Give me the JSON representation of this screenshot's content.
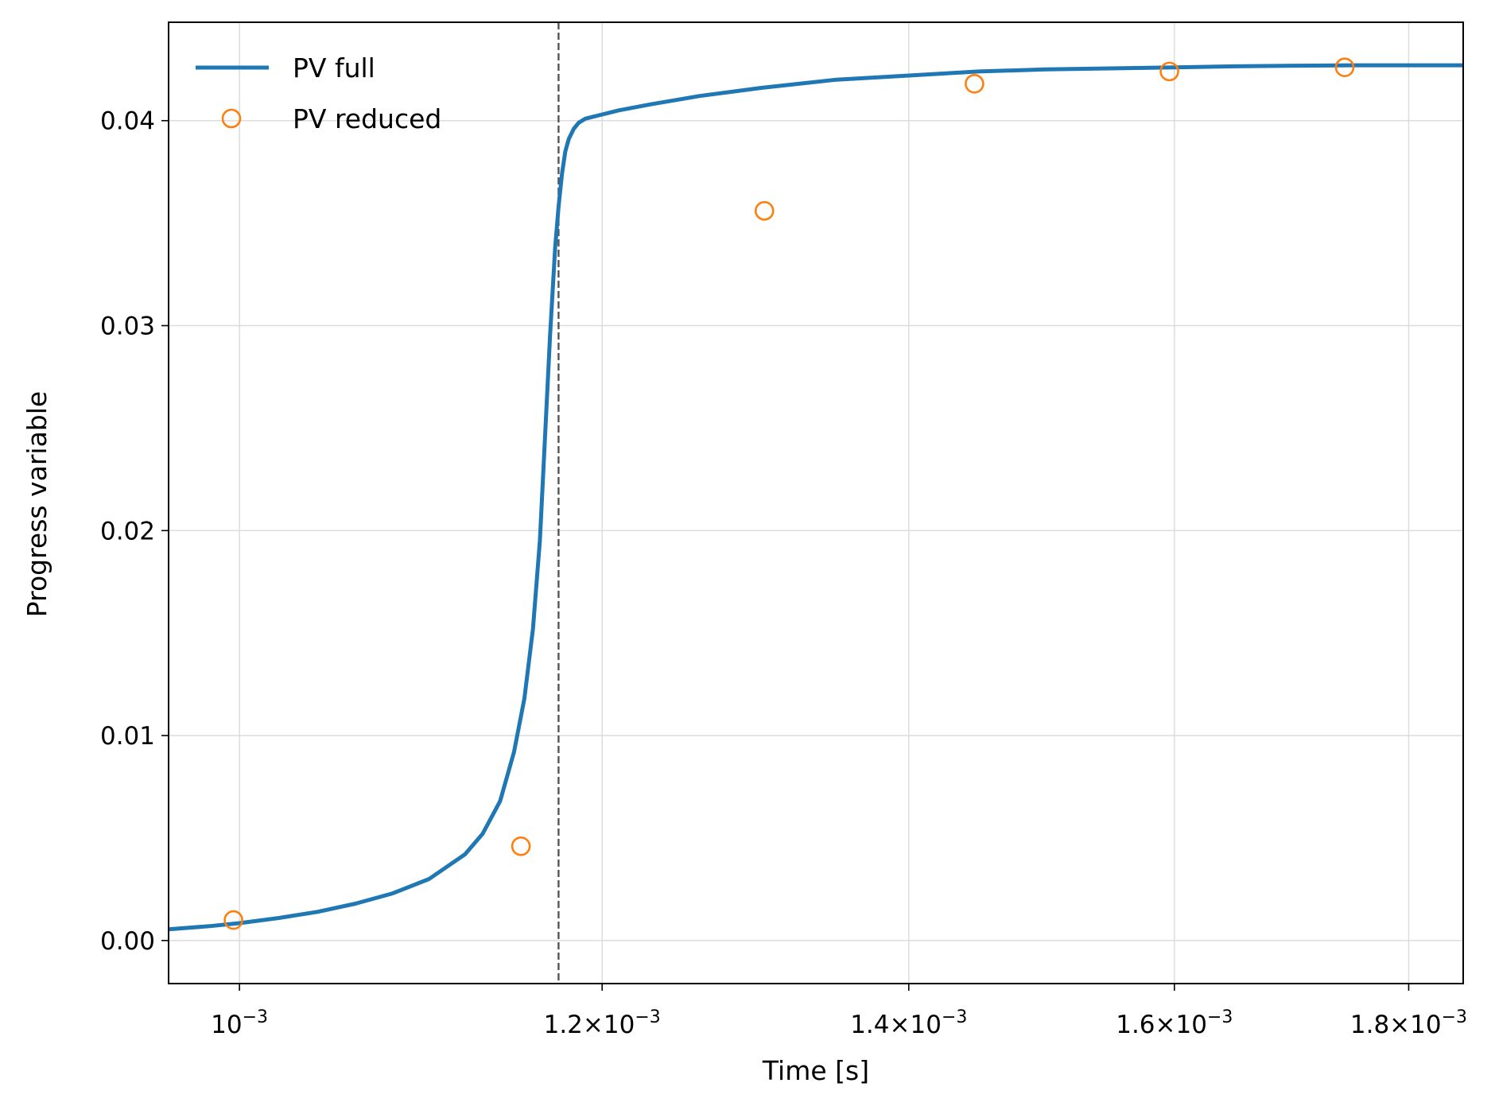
{
  "chart_data": {
    "type": "line",
    "xlabel": "Time [s]",
    "ylabel": "Progress variable",
    "x_scale": "log",
    "xlim": [
      0.000965,
      0.00185
    ],
    "ylim": [
      -0.0021,
      0.0448
    ],
    "grid": true,
    "legend_position": "top-left",
    "x_ticks": [
      {
        "value": 0.001,
        "mantissa": "",
        "exponent": "−3"
      },
      {
        "value": 0.0012,
        "mantissa": "1.2",
        "exponent": "−3"
      },
      {
        "value": 0.0014,
        "mantissa": "1.4",
        "exponent": "−3"
      },
      {
        "value": 0.0016,
        "mantissa": "1.6",
        "exponent": "−3"
      },
      {
        "value": 0.0018,
        "mantissa": "1.8",
        "exponent": "−3"
      }
    ],
    "y_ticks": [
      {
        "value": 0.0,
        "label": "0.00"
      },
      {
        "value": 0.01,
        "label": "0.01"
      },
      {
        "value": 0.02,
        "label": "0.02"
      },
      {
        "value": 0.03,
        "label": "0.03"
      },
      {
        "value": 0.04,
        "label": "0.04"
      }
    ],
    "vline": {
      "x": 0.001174,
      "color": "#555555",
      "style": "dashed"
    },
    "series": [
      {
        "name": "PV full",
        "kind": "line",
        "color": "#1f77b4",
        "x": [
          0.000965,
          0.000985,
          0.001,
          0.00102,
          0.00104,
          0.00106,
          0.00108,
          0.0011,
          0.00112,
          0.00113,
          0.00114,
          0.001148,
          0.001154,
          0.001159,
          0.001163,
          0.001166,
          0.001169,
          0.001172,
          0.001174,
          0.001176,
          0.001178,
          0.00118,
          0.001183,
          0.001186,
          0.00119,
          0.001195,
          0.0012,
          0.00121,
          0.00123,
          0.00126,
          0.0013,
          0.00135,
          0.0014,
          0.00145,
          0.0015,
          0.00155,
          0.0016,
          0.00165,
          0.0017,
          0.00175,
          0.0018,
          0.00185
        ],
        "y": [
          0.00055,
          0.0007,
          0.00085,
          0.0011,
          0.0014,
          0.0018,
          0.0023,
          0.003,
          0.0042,
          0.0052,
          0.0068,
          0.0092,
          0.0118,
          0.0152,
          0.0195,
          0.0245,
          0.0295,
          0.0338,
          0.0358,
          0.0374,
          0.0385,
          0.0391,
          0.0396,
          0.0399,
          0.0401,
          0.0402,
          0.0403,
          0.0405,
          0.0408,
          0.0412,
          0.0416,
          0.042,
          0.0422,
          0.0424,
          0.0425,
          0.04255,
          0.0426,
          0.04265,
          0.04268,
          0.0427,
          0.0427,
          0.0427
        ]
      },
      {
        "name": "PV reduced",
        "kind": "scatter",
        "color": "#ff7f0e",
        "x": [
          0.000997,
          0.001152,
          0.001302,
          0.001447,
          0.001596,
          0.001743
        ],
        "y": [
          0.001,
          0.0046,
          0.0356,
          0.0418,
          0.0424,
          0.0426
        ]
      }
    ]
  }
}
